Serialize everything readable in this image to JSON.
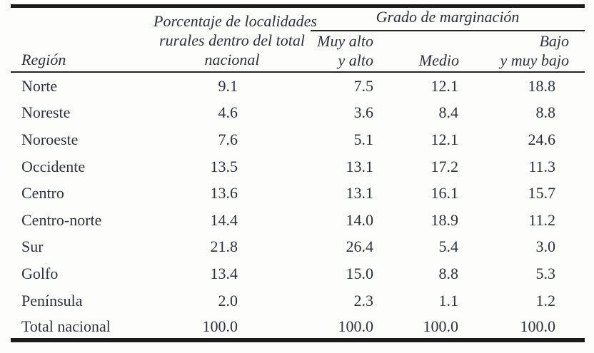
{
  "colors": {
    "text": "#2c313a",
    "rule_thick": "#1b1b1b",
    "rule_thin": "#232323",
    "background": "#fdfdfc"
  },
  "chart_data": {
    "type": "table",
    "columns": {
      "region_header": "Región",
      "rural_pct_header_lines": [
        "Porcentaje de localidades",
        "rurales dentro del total",
        "nacional"
      ],
      "group_header": "Grado de marginación",
      "muy_alto_header_lines": [
        "Muy alto",
        "y alto"
      ],
      "medio_header": "Medio",
      "bajo_header_lines": [
        "Bajo",
        "y muy bajo"
      ]
    },
    "rows": [
      {
        "region": "Norte",
        "values": [
          "9.1",
          "7.5",
          "12.1",
          "18.8"
        ]
      },
      {
        "region": "Noreste",
        "values": [
          "4.6",
          "3.6",
          "8.4",
          "8.8"
        ]
      },
      {
        "region": "Noroeste",
        "values": [
          "7.6",
          "5.1",
          "12.1",
          "24.6"
        ]
      },
      {
        "region": "Occidente",
        "values": [
          "13.5",
          "13.1",
          "17.2",
          "11.3"
        ]
      },
      {
        "region": "Centro",
        "values": [
          "13.6",
          "13.1",
          "16.1",
          "15.7"
        ]
      },
      {
        "region": "Centro-norte",
        "values": [
          "14.4",
          "14.0",
          "18.9",
          "11.2"
        ]
      },
      {
        "region": "Sur",
        "values": [
          "21.8",
          "26.4",
          "5.4",
          "3.0"
        ]
      },
      {
        "region": "Golfo",
        "values": [
          "13.4",
          "15.0",
          "8.8",
          "5.3"
        ]
      },
      {
        "region": "Península",
        "values": [
          "2.0",
          "2.3",
          "1.1",
          "1.2"
        ]
      },
      {
        "region": "Total nacional",
        "values": [
          "100.0",
          "100.0",
          "100.0",
          "100.0"
        ]
      }
    ]
  }
}
